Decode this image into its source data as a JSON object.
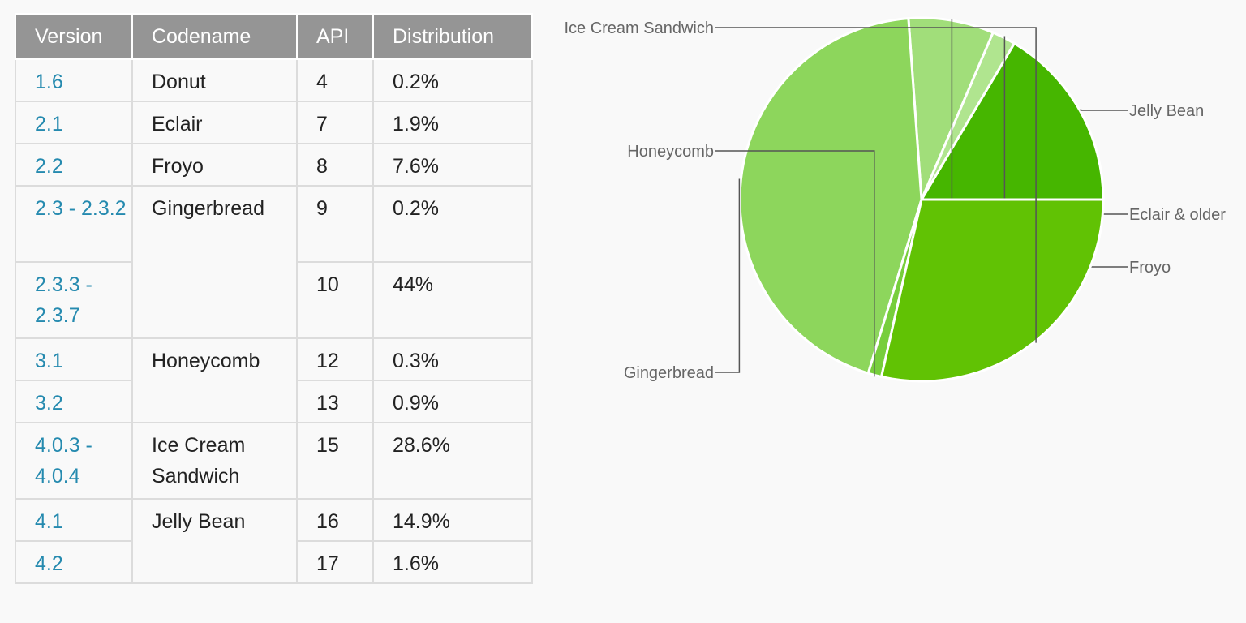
{
  "table": {
    "headers": [
      "Version",
      "Codename",
      "API",
      "Distribution"
    ],
    "rows": [
      {
        "version": "1.6",
        "codename": "Donut",
        "api": "4",
        "distribution": "0.2%"
      },
      {
        "version": "2.1",
        "codename": "Eclair",
        "api": "7",
        "distribution": "1.9%"
      },
      {
        "version": "2.2",
        "codename": "Froyo",
        "api": "8",
        "distribution": "7.6%"
      },
      {
        "version": "2.3 - 2.3.2",
        "codename": "Gingerbread",
        "api": "9",
        "distribution": "0.2%"
      },
      {
        "version": "2.3.3 - 2.3.7",
        "codename": "Gingerbread",
        "api": "10",
        "distribution": "44%"
      },
      {
        "version": "3.1",
        "codename": "Honeycomb",
        "api": "12",
        "distribution": "0.3%"
      },
      {
        "version": "3.2",
        "codename": "Honeycomb",
        "api": "13",
        "distribution": "0.9%"
      },
      {
        "version": "4.0.3 - 4.0.4",
        "codename": "Ice Cream Sandwich",
        "api": "15",
        "distribution": "28.6%"
      },
      {
        "version": "4.1",
        "codename": "Jelly Bean",
        "api": "16",
        "distribution": "14.9%"
      },
      {
        "version": "4.2",
        "codename": "Jelly Bean",
        "api": "17",
        "distribution": "1.6%"
      }
    ]
  },
  "colors": {
    "header_bg": "#959595",
    "version_link": "#258aaf",
    "border": "#dcdcdc"
  },
  "chart_data": {
    "type": "pie",
    "title": "",
    "slices": [
      {
        "label": "Jelly Bean",
        "value": 16.5,
        "color": "#46b600"
      },
      {
        "label": "Eclair & older",
        "value": 2.1,
        "color": "#b0e58f"
      },
      {
        "label": "Froyo",
        "value": 7.6,
        "color": "#a1de7a"
      },
      {
        "label": "Gingerbread",
        "value": 44.2,
        "color": "#8dd65c"
      },
      {
        "label": "Honeycomb",
        "value": 1.2,
        "color": "#77ce3c"
      },
      {
        "label": "Ice Cream Sandwich",
        "value": 28.6,
        "color": "#61c204"
      }
    ],
    "start_angle_deg": 0,
    "direction": "counterclockwise",
    "legend": "callout labels"
  }
}
